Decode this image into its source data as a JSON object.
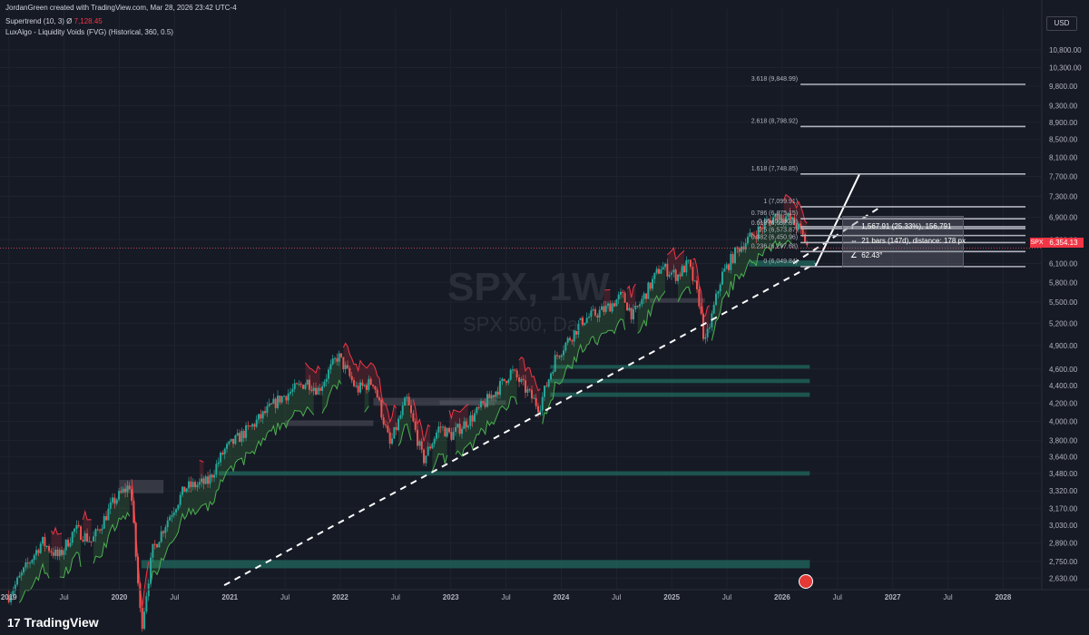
{
  "header": {
    "credit": "JordanGreen created with TradingView.com, Mar 28, 2026 23:42 UTC-4",
    "indicator1_name": "Supertrend (10, 3) Ø",
    "indicator1_value": "7,128.45",
    "indicator2": "LuxAlgo - Liquidity Voids (FVG) (Historical, 360, 0.5)"
  },
  "watermark": {
    "symbol": "SPX, 1W",
    "name": "SPX 500, Dai"
  },
  "brand": {
    "logo": "17",
    "name": "TradingView"
  },
  "currency": "USD",
  "last_price": {
    "symbol": "SPX",
    "value": "6,354.13"
  },
  "measure": {
    "line1": "1,567.91 (25.33%), 156,791",
    "line2": "21 bars (147d), distance: 178 px",
    "line3": "62.43°",
    "icon1": "↕",
    "icon2": "⇔",
    "icon3": "∠"
  },
  "colors": {
    "background": "#161a25",
    "up_candle": "#26a69a",
    "down_candle": "#ef5350",
    "supertrend_up": "#4caf50",
    "supertrend_down": "#f23645",
    "fvg_bull": "#1f5f57",
    "fvg_bear": "#5d606b",
    "fib": "#b2b5be",
    "axis_text": "#b2b5be"
  },
  "chart_data": {
    "type": "candlestick",
    "title": "SPX, 1W",
    "subtitle": "SPX 500, Dai",
    "scale": "log",
    "ylim": [
      2550,
      11200
    ],
    "y_ticks": [
      "10,800.00",
      "10,300.00",
      "9,800.00",
      "9,300.00",
      "8,900.00",
      "8,500.00",
      "8,100.00",
      "7,700.00",
      "7,300.00",
      "6,900.00",
      "6,500.00",
      "6,100.00",
      "5,800.00",
      "5,500.00",
      "5,200.00",
      "4,900.00",
      "4,600.00",
      "4,400.00",
      "4,200.00",
      "4,000.00",
      "3,800.00",
      "3,640.00",
      "3,480.00",
      "3,320.00",
      "3,170.00",
      "3,030.00",
      "2,890.00",
      "2,750.00",
      "2,630.00"
    ],
    "y_tick_values": [
      10800,
      10300,
      9800,
      9300,
      8900,
      8500,
      8100,
      7700,
      7300,
      6900,
      6500,
      6100,
      5800,
      5500,
      5200,
      4900,
      4600,
      4400,
      4200,
      4000,
      3800,
      3640,
      3480,
      3320,
      3170,
      3030,
      2890,
      2750,
      2630
    ],
    "x_ticks": [
      "2019",
      "Jul",
      "2020",
      "Jul",
      "2021",
      "Jul",
      "2022",
      "Jul",
      "2023",
      "Jul",
      "2024",
      "Jul",
      "2025",
      "Jul",
      "2026",
      "Jul",
      "2027",
      "Jul",
      "2028"
    ],
    "x_tick_years": [
      2019.0,
      2019.5,
      2020.0,
      2020.5,
      2021.0,
      2021.5,
      2022.0,
      2022.5,
      2023.0,
      2023.5,
      2024.0,
      2024.5,
      2025.0,
      2025.5,
      2026.0,
      2026.5,
      2027.0,
      2027.5,
      2028.0
    ],
    "xlim_years": [
      2018.92,
      2028.35
    ],
    "price_path": [
      [
        2019.0,
        2510
      ],
      [
        2019.3,
        2900
      ],
      [
        2019.45,
        2780
      ],
      [
        2019.6,
        3000
      ],
      [
        2019.75,
        2900
      ],
      [
        2019.95,
        3230
      ],
      [
        2020.1,
        3380
      ],
      [
        2020.2,
        2300
      ],
      [
        2020.3,
        2830
      ],
      [
        2020.45,
        3100
      ],
      [
        2020.6,
        3350
      ],
      [
        2020.8,
        3400
      ],
      [
        2020.95,
        3700
      ],
      [
        2021.2,
        3950
      ],
      [
        2021.45,
        4250
      ],
      [
        2021.7,
        4450
      ],
      [
        2021.8,
        4350
      ],
      [
        2021.98,
        4770
      ],
      [
        2022.15,
        4350
      ],
      [
        2022.3,
        4450
      ],
      [
        2022.45,
        3750
      ],
      [
        2022.6,
        4250
      ],
      [
        2022.75,
        3600
      ],
      [
        2022.9,
        3950
      ],
      [
        2023.0,
        3850
      ],
      [
        2023.2,
        4050
      ],
      [
        2023.45,
        4400
      ],
      [
        2023.55,
        4580
      ],
      [
        2023.8,
        4150
      ],
      [
        2023.95,
        4750
      ],
      [
        2024.2,
        5250
      ],
      [
        2024.4,
        5400
      ],
      [
        2024.55,
        5600
      ],
      [
        2024.65,
        5300
      ],
      [
        2024.9,
        6050
      ],
      [
        2025.05,
        5900
      ],
      [
        2025.15,
        6100
      ],
      [
        2025.25,
        5500
      ],
      [
        2025.3,
        4900
      ],
      [
        2025.45,
        5900
      ],
      [
        2025.6,
        6350
      ],
      [
        2025.8,
        6700
      ],
      [
        2025.95,
        6950
      ],
      [
        2026.05,
        6900
      ],
      [
        2026.15,
        6700
      ],
      [
        2026.24,
        6354
      ]
    ],
    "fibonacci": [
      {
        "level": "3.618",
        "price": 9848.99,
        "label": "3.618 (9,848.99)"
      },
      {
        "level": "2.618",
        "price": 8798.92,
        "label": "2.618 (8,798.92)"
      },
      {
        "level": "1.618",
        "price": 7748.85,
        "label": "1.618 (7,748.85)"
      },
      {
        "level": "1",
        "price": 7099.91,
        "label": "1 (7,099.91)"
      },
      {
        "level": "0.786",
        "price": 6875.15,
        "label": "0.786 (6,875.15)"
      },
      {
        "level": "0.65",
        "price": 6730,
        "label": "0.65 (6,730.1)"
      },
      {
        "level": "0.618",
        "price": 6697.87,
        "label": "0.618 (6,697.87)"
      },
      {
        "level": "0.5",
        "price": 6573.87,
        "label": "0.5 (6,573.87)"
      },
      {
        "level": "0.382",
        "price": 6450.96,
        "label": "0.382 (6,450.96)"
      },
      {
        "level": "0.236",
        "price": 6297.68,
        "label": "0.236 (6,297.68)"
      },
      {
        "level": "0",
        "price": 6049.84,
        "label": "0 (6,049.84)"
      }
    ],
    "fib_x_years": [
      2026.1,
      2028.35
    ],
    "fvg_zones_bull": [
      [
        2020.2,
        2026.25,
        2700,
        2760
      ],
      [
        2020.9,
        2026.25,
        3460,
        3500
      ],
      [
        2023.9,
        2026.25,
        4270,
        4320
      ],
      [
        2023.9,
        2026.25,
        4430,
        4480
      ],
      [
        2023.9,
        2026.25,
        4610,
        4650
      ],
      [
        2025.7,
        2026.3,
        6050,
        6150
      ]
    ],
    "fvg_zones_bear": [
      [
        2020.0,
        2020.4,
        3300,
        3420
      ],
      [
        2021.5,
        2022.3,
        3950,
        4010
      ],
      [
        2022.3,
        2023.4,
        4170,
        4260
      ],
      [
        2022.9,
        2023.5,
        4180,
        4230
      ],
      [
        2024.8,
        2025.3,
        5500,
        5560
      ]
    ],
    "trendline": [
      [
        2020.95,
        2580
      ],
      [
        2026.3,
        6100
      ]
    ],
    "trendline_ext": [
      [
        2026.1,
        6100
      ],
      [
        2026.9,
        7110
      ]
    ],
    "projection": [
      [
        2026.3,
        6049.84
      ],
      [
        2026.7,
        7748.85
      ]
    ],
    "last_price": 6354.13,
    "supertrend_value": 7128.45
  }
}
